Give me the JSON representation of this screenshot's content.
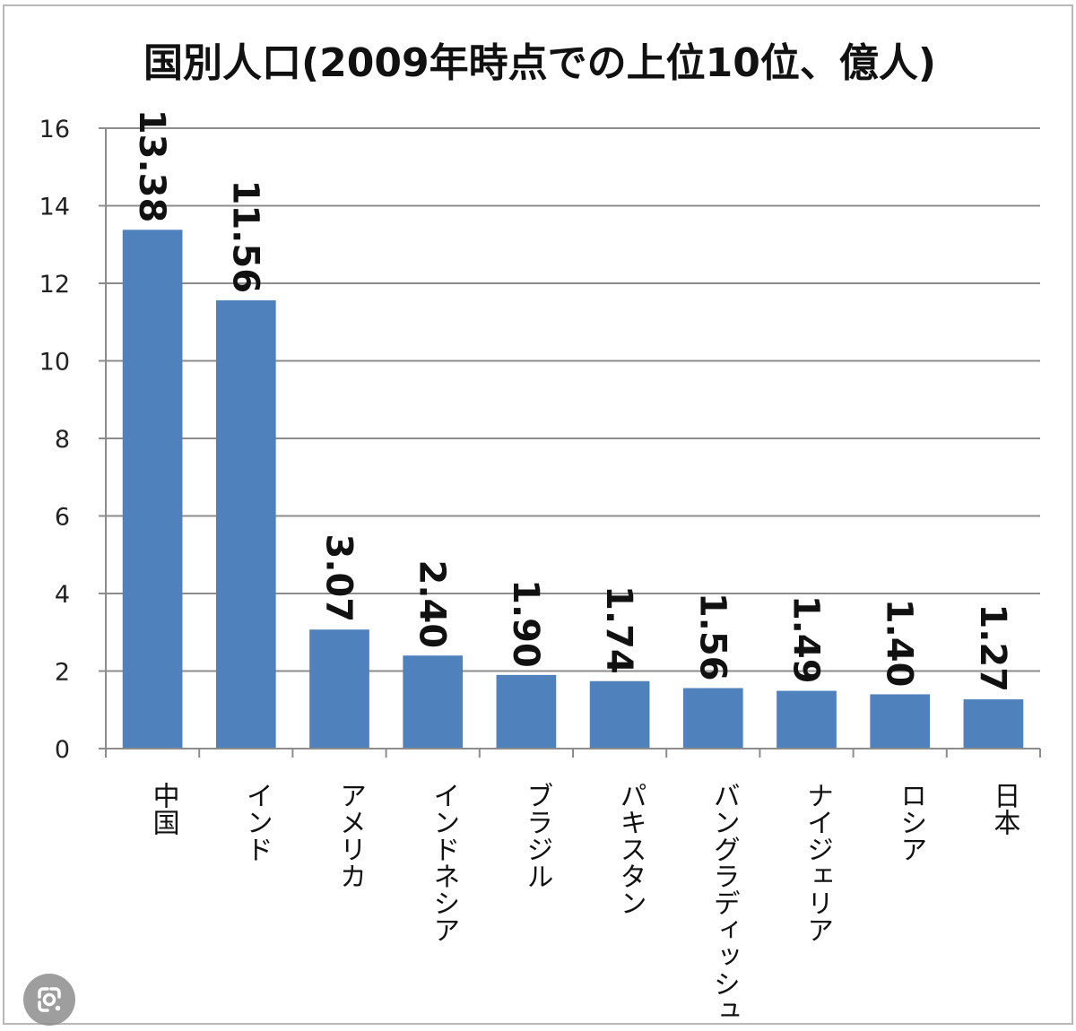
{
  "chart_data": {
    "type": "bar",
    "title": "国別人口(2009年時点での上位10位、億人)",
    "categories": [
      "中国",
      "インド",
      "アメリカ",
      "インドネシア",
      "ブラジル",
      "パキスタン",
      "バングラディッシュ",
      "ナイジェリア",
      "ロシア",
      "日本"
    ],
    "values": [
      13.38,
      11.56,
      3.07,
      2.4,
      1.9,
      1.74,
      1.56,
      1.49,
      1.4,
      1.27
    ],
    "data_labels": [
      "13.38",
      "11.56",
      "3.07",
      "2.40",
      "1.90",
      "1.74",
      "1.56",
      "1.49",
      "1.40",
      "1.27"
    ],
    "y_ticks": [
      "0",
      "2",
      "4",
      "6",
      "8",
      "10",
      "12",
      "14",
      "16"
    ],
    "ylim": [
      0,
      16
    ],
    "xlabel": "",
    "ylabel": "",
    "grid": true,
    "legend": "none",
    "bar_color": "#4f81bd",
    "grid_color": "#8c8c8c"
  },
  "overlay": {
    "lens_icon": "google-lens-icon"
  }
}
